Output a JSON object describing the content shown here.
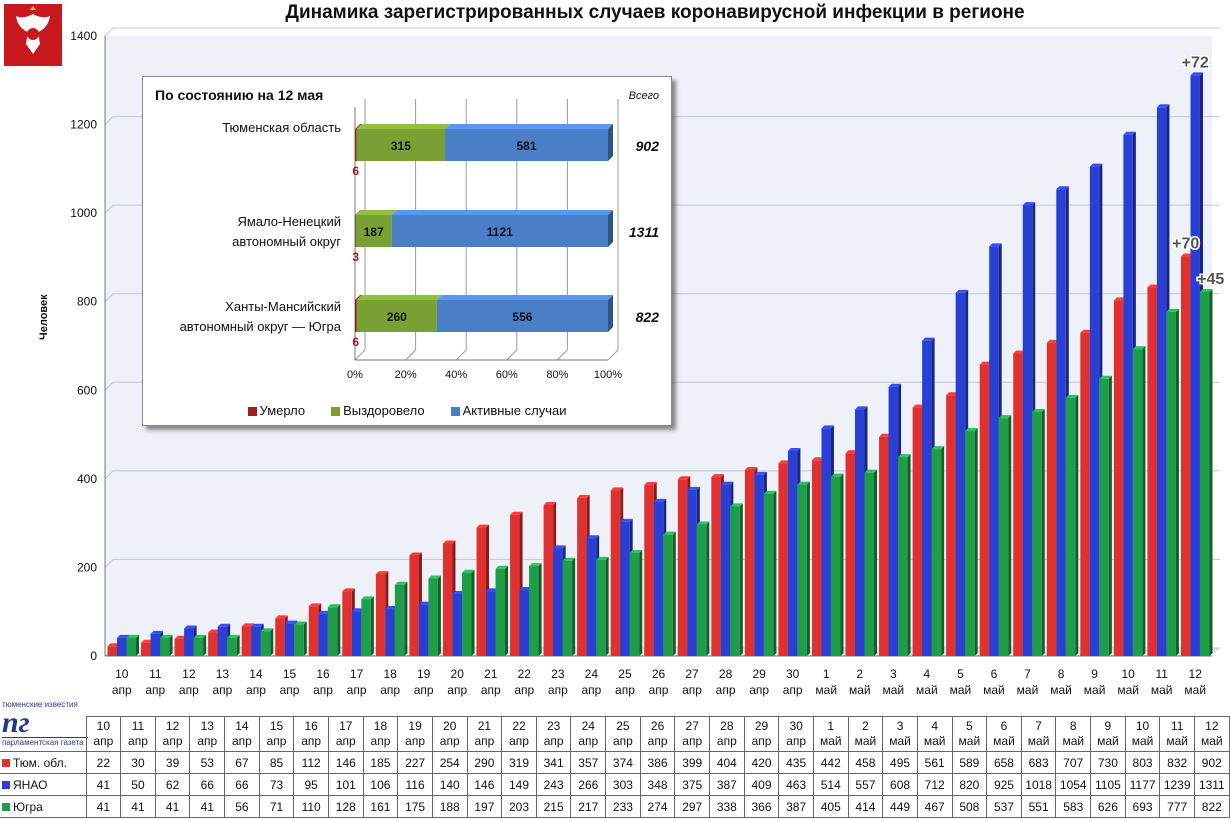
{
  "title": "Динамика зарегистрированных случаев коронавирусной инфекции в регионе",
  "y_axis_label": "Человек",
  "logo": {
    "top_text": "тюменские известия",
    "mark": "пг",
    "bottom_text": "парламентская газета"
  },
  "colors": {
    "tyumen": "#e03030",
    "yanao": "#2a3fd4",
    "yugra": "#1f9e4a",
    "died": "#9a2020",
    "recovered": "#78a032",
    "active": "#4a7fc8"
  },
  "chart_data": {
    "type": "bar",
    "ylim": [
      0,
      1400
    ],
    "yticks": [
      0,
      200,
      400,
      600,
      800,
      1000,
      1200,
      1400
    ],
    "grid": true,
    "categories_day": [
      "10",
      "11",
      "12",
      "13",
      "14",
      "15",
      "16",
      "17",
      "18",
      "19",
      "20",
      "21",
      "22",
      "23",
      "24",
      "25",
      "26",
      "27",
      "28",
      "29",
      "30",
      "1",
      "2",
      "3",
      "4",
      "5",
      "6",
      "7",
      "8",
      "9",
      "10",
      "11",
      "12"
    ],
    "categories_month": [
      "апр",
      "апр",
      "апр",
      "апр",
      "апр",
      "апр",
      "апр",
      "апр",
      "апр",
      "апр",
      "апр",
      "апр",
      "апр",
      "апр",
      "апр",
      "апр",
      "апр",
      "апр",
      "апр",
      "апр",
      "апр",
      "май",
      "май",
      "май",
      "май",
      "май",
      "май",
      "май",
      "май",
      "май",
      "май",
      "май",
      "май"
    ],
    "series": [
      {
        "name": "Тюм. обл.",
        "color_key": "tyumen",
        "values": [
          22,
          30,
          39,
          53,
          67,
          85,
          112,
          146,
          185,
          227,
          254,
          290,
          319,
          341,
          357,
          374,
          386,
          399,
          404,
          420,
          435,
          442,
          458,
          495,
          561,
          589,
          658,
          683,
          707,
          730,
          803,
          832,
          902
        ]
      },
      {
        "name": "ЯНАО",
        "color_key": "yanao",
        "values": [
          41,
          50,
          62,
          66,
          66,
          73,
          95,
          101,
          106,
          116,
          140,
          146,
          149,
          243,
          266,
          303,
          348,
          375,
          387,
          409,
          463,
          514,
          557,
          608,
          712,
          820,
          925,
          1018,
          1054,
          1105,
          1177,
          1239,
          1311
        ]
      },
      {
        "name": "Югра",
        "color_key": "yugra",
        "values": [
          41,
          41,
          41,
          41,
          56,
          71,
          110,
          128,
          161,
          175,
          188,
          197,
          203,
          215,
          217,
          233,
          274,
          297,
          338,
          366,
          387,
          405,
          414,
          449,
          467,
          508,
          537,
          551,
          583,
          626,
          693,
          777,
          822
        ]
      }
    ],
    "increments": [
      {
        "label": "+72",
        "series": 1
      },
      {
        "label": "+70",
        "series": 0
      },
      {
        "label": "+45",
        "series": 2
      }
    ],
    "inset": {
      "type": "bar",
      "stacked": "percent",
      "orientation": "horizontal",
      "title": "По состоянию на 12 мая",
      "total_label": "Всего",
      "xticks": [
        "0%",
        "20%",
        "40%",
        "60%",
        "80%",
        "100%"
      ],
      "legend": [
        "Умерло",
        "Выздоровело",
        "Активные случаи"
      ],
      "legend_colors": [
        "died",
        "recovered",
        "active"
      ],
      "rows": [
        {
          "label_lines": [
            "Тюменская область"
          ],
          "died": 6,
          "recovered": 315,
          "active": 581,
          "total": "902"
        },
        {
          "label_lines": [
            "Ямало-Ненецкий",
            "автономный округ"
          ],
          "died": 3,
          "recovered": 187,
          "active": 1121,
          "total": "1311"
        },
        {
          "label_lines": [
            "Ханты-Мансийский",
            "автономный округ — Югра"
          ],
          "died": 6,
          "recovered": 260,
          "active": 556,
          "total": "822"
        }
      ]
    }
  },
  "table": {
    "row_labels": [
      "Тюм. обл.",
      "ЯНАО",
      "Югра"
    ]
  }
}
